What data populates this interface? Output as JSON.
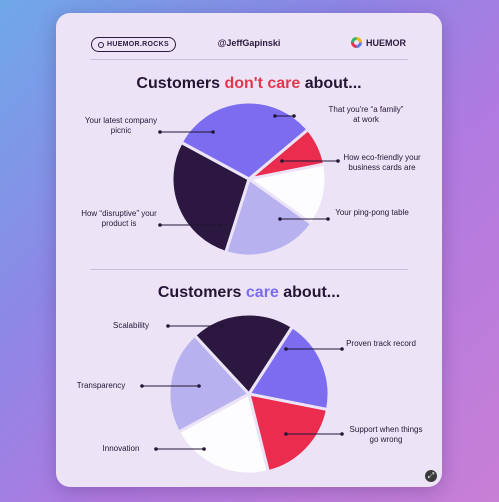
{
  "header": {
    "site": "HUEMOR.ROCKS",
    "handle": "@JeffGapinski",
    "brand": "HUEMOR"
  },
  "section1": {
    "title_pre": "Customers ",
    "title_hl": "don't care",
    "title_post": " about...",
    "hl_color": "#e2374f"
  },
  "section2": {
    "title_pre": "Customers ",
    "title_hl": "care",
    "title_post": " about...",
    "hl_color": "#7b6cf0"
  },
  "colors": {
    "purple": "#7b6cf0",
    "red": "#ea2d4f",
    "white": "#fdfcff",
    "lavender": "#b7b2ef",
    "dark": "#2b173f"
  },
  "chart_data": [
    {
      "type": "pie",
      "title": "Customers don't care about...",
      "slices": [
        {
          "label": "That you're “a family” at work",
          "value": 8,
          "color": "#ea2d4f"
        },
        {
          "label": "How eco-friendly your business cards are",
          "value": 13,
          "color": "#fdfcff"
        },
        {
          "label": "Your ping-pong table",
          "value": 20,
          "color": "#b7b2ef"
        },
        {
          "label": "How “disruptive” your product is",
          "value": 28,
          "color": "#2b173f"
        },
        {
          "label": "Your latest company picnic",
          "value": 31,
          "color": "#7b6cf0"
        }
      ]
    },
    {
      "type": "pie",
      "title": "Customers care about...",
      "slices": [
        {
          "label": "Proven track record",
          "value": 21,
          "color": "#fdfcff"
        },
        {
          "label": "Support when things go wrong",
          "value": 21,
          "color": "#b7b2ef"
        },
        {
          "label": "Innovation",
          "value": 21,
          "color": "#2b173f"
        },
        {
          "label": "Transparency",
          "value": 19,
          "color": "#7b6cf0"
        },
        {
          "label": "Scalability",
          "value": 18,
          "color": "#ea2d4f"
        }
      ]
    }
  ]
}
